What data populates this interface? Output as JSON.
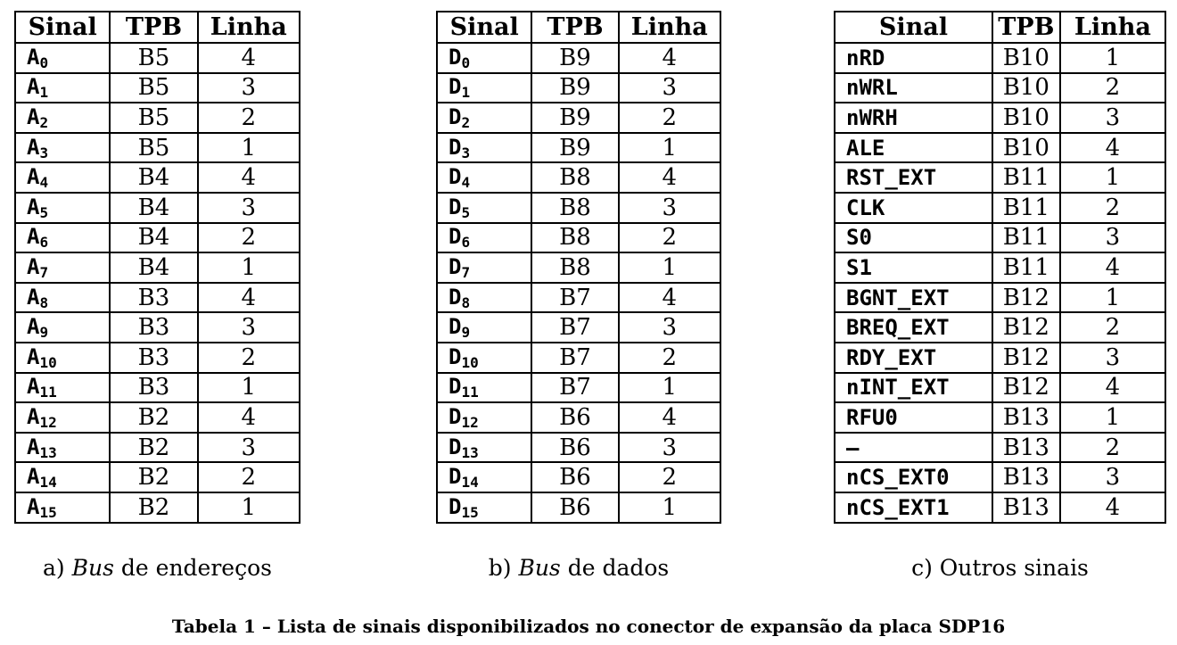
{
  "headers": {
    "signal": "Sinal",
    "tpb": "TPB",
    "line": "Linha"
  },
  "tables": [
    {
      "caption_prefix": "a) ",
      "caption_italic": "Bus",
      "caption_suffix": " de endereços",
      "rows": [
        {
          "base": "A",
          "sub": "0",
          "tpb": "B5",
          "line": "4"
        },
        {
          "base": "A",
          "sub": "1",
          "tpb": "B5",
          "line": "3"
        },
        {
          "base": "A",
          "sub": "2",
          "tpb": "B5",
          "line": "2"
        },
        {
          "base": "A",
          "sub": "3",
          "tpb": "B5",
          "line": "1"
        },
        {
          "base": "A",
          "sub": "4",
          "tpb": "B4",
          "line": "4"
        },
        {
          "base": "A",
          "sub": "5",
          "tpb": "B4",
          "line": "3"
        },
        {
          "base": "A",
          "sub": "6",
          "tpb": "B4",
          "line": "2"
        },
        {
          "base": "A",
          "sub": "7",
          "tpb": "B4",
          "line": "1"
        },
        {
          "base": "A",
          "sub": "8",
          "tpb": "B3",
          "line": "4"
        },
        {
          "base": "A",
          "sub": "9",
          "tpb": "B3",
          "line": "3"
        },
        {
          "base": "A",
          "sub": "10",
          "tpb": "B3",
          "line": "2"
        },
        {
          "base": "A",
          "sub": "11",
          "tpb": "B3",
          "line": "1"
        },
        {
          "base": "A",
          "sub": "12",
          "tpb": "B2",
          "line": "4"
        },
        {
          "base": "A",
          "sub": "13",
          "tpb": "B2",
          "line": "3"
        },
        {
          "base": "A",
          "sub": "14",
          "tpb": "B2",
          "line": "2"
        },
        {
          "base": "A",
          "sub": "15",
          "tpb": "B2",
          "line": "1"
        }
      ]
    },
    {
      "caption_prefix": "b) ",
      "caption_italic": "Bus",
      "caption_suffix": " de dados",
      "rows": [
        {
          "base": "D",
          "sub": "0",
          "tpb": "B9",
          "line": "4"
        },
        {
          "base": "D",
          "sub": "1",
          "tpb": "B9",
          "line": "3"
        },
        {
          "base": "D",
          "sub": "2",
          "tpb": "B9",
          "line": "2"
        },
        {
          "base": "D",
          "sub": "3",
          "tpb": "B9",
          "line": "1"
        },
        {
          "base": "D",
          "sub": "4",
          "tpb": "B8",
          "line": "4"
        },
        {
          "base": "D",
          "sub": "5",
          "tpb": "B8",
          "line": "3"
        },
        {
          "base": "D",
          "sub": "6",
          "tpb": "B8",
          "line": "2"
        },
        {
          "base": "D",
          "sub": "7",
          "tpb": "B8",
          "line": "1"
        },
        {
          "base": "D",
          "sub": "8",
          "tpb": "B7",
          "line": "4"
        },
        {
          "base": "D",
          "sub": "9",
          "tpb": "B7",
          "line": "3"
        },
        {
          "base": "D",
          "sub": "10",
          "tpb": "B7",
          "line": "2"
        },
        {
          "base": "D",
          "sub": "11",
          "tpb": "B7",
          "line": "1"
        },
        {
          "base": "D",
          "sub": "12",
          "tpb": "B6",
          "line": "4"
        },
        {
          "base": "D",
          "sub": "13",
          "tpb": "B6",
          "line": "3"
        },
        {
          "base": "D",
          "sub": "14",
          "tpb": "B6",
          "line": "2"
        },
        {
          "base": "D",
          "sub": "15",
          "tpb": "B6",
          "line": "1"
        }
      ]
    },
    {
      "caption_prefix": "c) Outros sinais",
      "caption_italic": "",
      "caption_suffix": "",
      "rows": [
        {
          "base": "nRD",
          "sub": "",
          "tpb": "B10",
          "line": "1"
        },
        {
          "base": "nWRL",
          "sub": "",
          "tpb": "B10",
          "line": "2"
        },
        {
          "base": "nWRH",
          "sub": "",
          "tpb": "B10",
          "line": "3"
        },
        {
          "base": "ALE",
          "sub": "",
          "tpb": "B10",
          "line": "4"
        },
        {
          "base": "RST_EXT",
          "sub": "",
          "tpb": "B11",
          "line": "1"
        },
        {
          "base": "CLK",
          "sub": "",
          "tpb": "B11",
          "line": "2"
        },
        {
          "base": "S0",
          "sub": "",
          "tpb": "B11",
          "line": "3"
        },
        {
          "base": "S1",
          "sub": "",
          "tpb": "B11",
          "line": "4"
        },
        {
          "base": "BGNT_EXT",
          "sub": "",
          "tpb": "B12",
          "line": "1"
        },
        {
          "base": "BREQ_EXT",
          "sub": "",
          "tpb": "B12",
          "line": "2"
        },
        {
          "base": "RDY_EXT",
          "sub": "",
          "tpb": "B12",
          "line": "3"
        },
        {
          "base": "nINT_EXT",
          "sub": "",
          "tpb": "B12",
          "line": "4"
        },
        {
          "base": "RFU0",
          "sub": "",
          "tpb": "B13",
          "line": "1"
        },
        {
          "base": "–",
          "sub": "",
          "tpb": "B13",
          "line": "2"
        },
        {
          "base": "nCS_EXT0",
          "sub": "",
          "tpb": "B13",
          "line": "3"
        },
        {
          "base": "nCS_EXT1",
          "sub": "",
          "tpb": "B13",
          "line": "4"
        }
      ]
    }
  ],
  "title": "Tabela 1 – Lista de sinais disponibilizados no conector de expansão da placa SDP16"
}
